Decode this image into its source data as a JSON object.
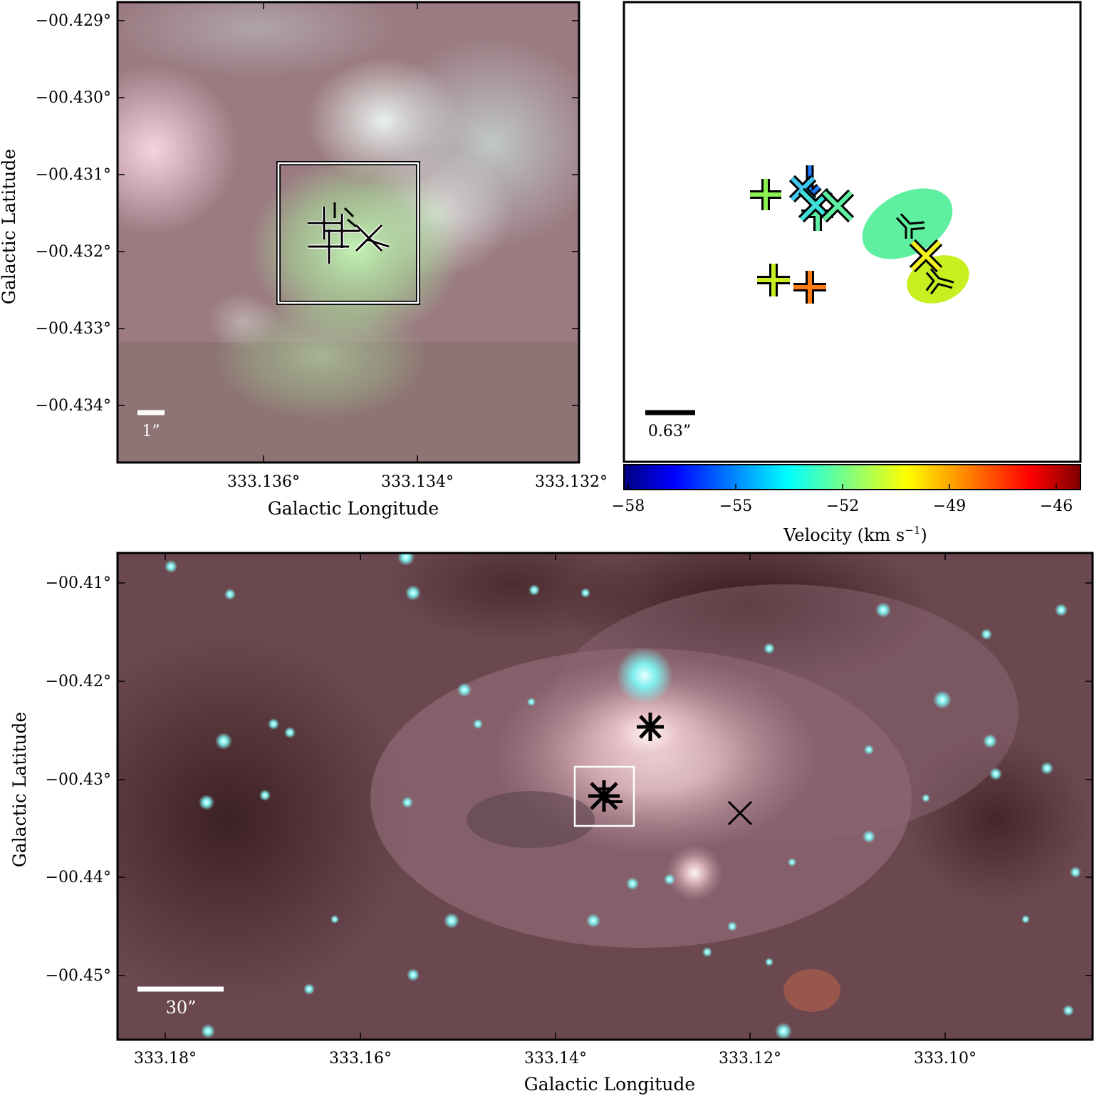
{
  "panel_a": {
    "xlabel": "Galactic Longitude",
    "ylabel": "Galactic Latitude",
    "xticks": [
      "333.136°",
      "333.134°",
      "333.132°"
    ],
    "yticks": [
      "−00.429°",
      "−00.430°",
      "−00.431°",
      "−00.432°",
      "−00.433°",
      "−00.434°"
    ],
    "scalebar": "1”"
  },
  "panel_b": {
    "scalebar": "0.63”",
    "colorbar": {
      "label": "Velocity (km s",
      "label_sup": "−1",
      "label_end": ")",
      "ticks": [
        "−58",
        "−55",
        "−52",
        "−49",
        "−46"
      ],
      "colormap": "jet",
      "range": [
        -58,
        -45.3
      ]
    }
  },
  "panel_c": {
    "xlabel": "Galactic Longitude",
    "ylabel": "Galactic Latitude",
    "xticks": [
      "333.18°",
      "333.16°",
      "333.14°",
      "333.12°",
      "333.10°"
    ],
    "yticks": [
      "−00.41°",
      "−00.42°",
      "−00.43°",
      "−00.44°",
      "−00.45°"
    ],
    "scalebar": "30”"
  },
  "colors": {
    "nebula_background": "#7a5560",
    "green_emission": "#b8e8a8",
    "star_cyan": "#7ff0ee",
    "marker_green": "#5ef0a0",
    "marker_yellowgreen": "#c8f020",
    "marker_orange": "#ff7a10",
    "marker_blue": "#1e7cff",
    "marker_cyan": "#3ee0d8"
  }
}
